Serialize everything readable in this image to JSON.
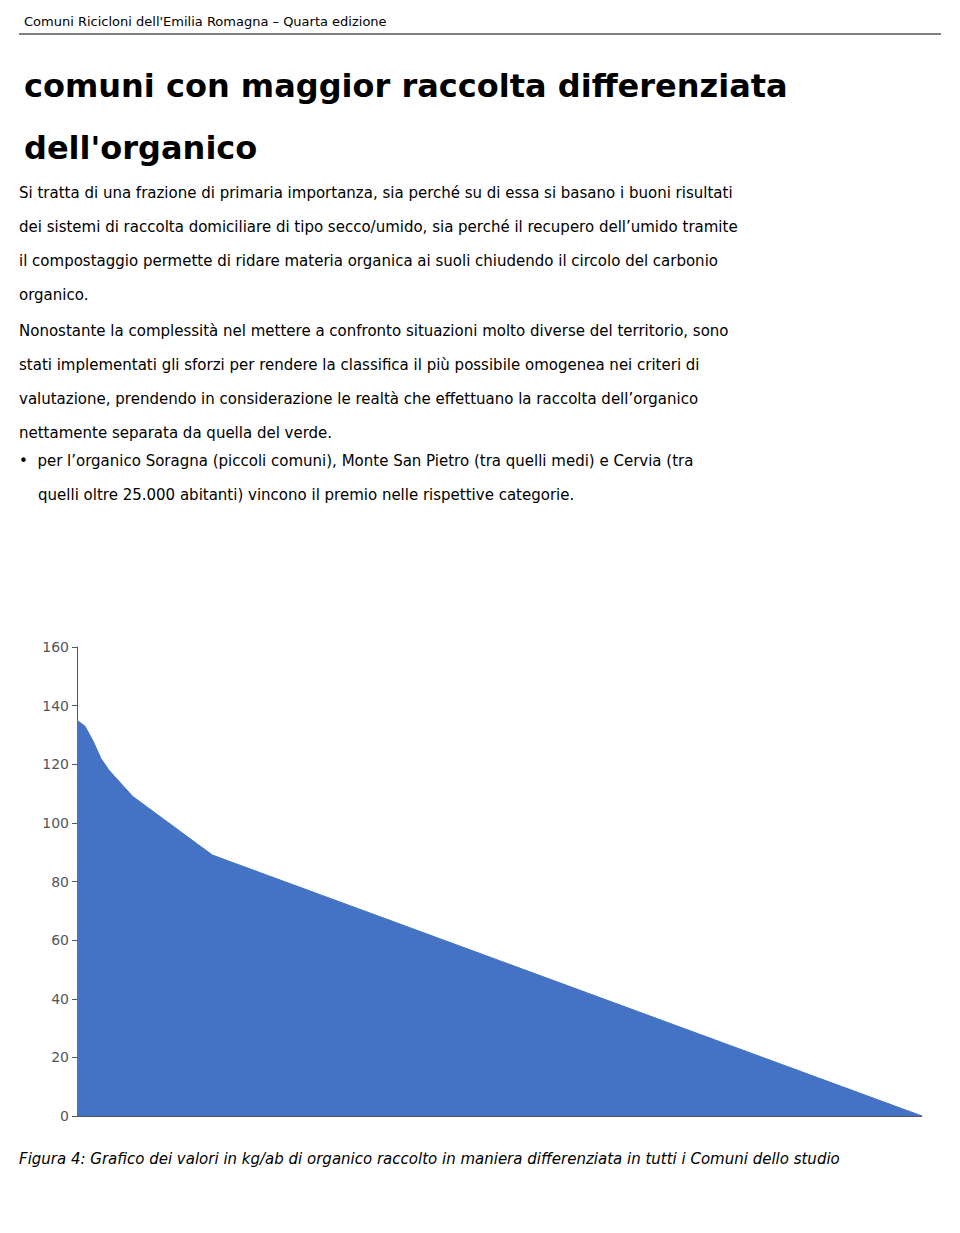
{
  "chart_data": {
    "type": "area",
    "subtitle": "Comuni Ricicloni dell'Emilia Romagna – Quarta edizione",
    "title": "comuni con maggior raccolta differenziata\ndell'organico",
    "annotations": [
      "Si tratta di una frazione di primaria importanza, sia perché su di essa si basano i buoni risultati\ndei sistemi di raccolta domiciliare di tipo secco/umido, sia perché il recupero dell’umido tramite\nil compostaggio permette di ridare materia organica ai suoli chiudendo il circolo del carbonio\norganico.",
      "Nonostante la complessità nel mettere a confronto situazioni molto diverse del territorio, sono\nstati implementati gli sforzi per rendere la classifica il più possibile omogenea nei criteri di\nvalutazione, prendendo in considerazione le realtà che effettuano la raccolta dell’organico\nnettamente separata da quella del verde.",
      "•  per l’organico Soragna (piccoli comuni), Monte San Pietro (tra quelli medi) e Cervia (tra\n    quelli oltre 25.000 abitanti) vincono il premio nelle rispettive categorie.",
      "Figura 4: Grafico dei valori in kg/ab di organico raccolto in maniera differenziata in tutti i Comuni dello studio"
    ],
    "color": "#4472C4",
    "ylim": [
      0,
      160
    ],
    "yticks": [
      0,
      20,
      40,
      60,
      80,
      100,
      120,
      140,
      160
    ],
    "grid": false,
    "tick_labels": "y",
    "values": [
      135,
      133,
      128,
      122,
      118,
      115,
      112,
      109,
      107,
      105,
      103,
      101,
      99,
      97,
      95,
      93,
      91,
      89,
      88,
      87,
      86,
      85,
      84,
      83,
      82,
      81,
      80,
      79,
      78,
      77,
      76,
      75,
      74,
      73,
      72,
      71,
      70,
      69,
      68,
      67,
      66,
      65,
      64,
      63,
      62,
      61,
      60,
      59,
      58,
      57,
      56,
      55,
      54,
      53,
      52,
      51,
      50,
      49,
      48,
      47,
      46,
      45,
      44,
      43,
      42,
      41,
      40,
      39,
      38,
      37,
      36,
      35,
      34,
      33,
      32,
      31,
      30,
      29,
      28,
      27,
      26,
      25,
      24,
      23,
      22,
      21,
      20,
      19,
      18,
      17,
      16,
      15,
      14,
      13,
      12,
      11,
      10,
      9,
      8,
      7,
      6,
      5,
      4,
      3,
      2,
      1,
      0
    ]
  }
}
